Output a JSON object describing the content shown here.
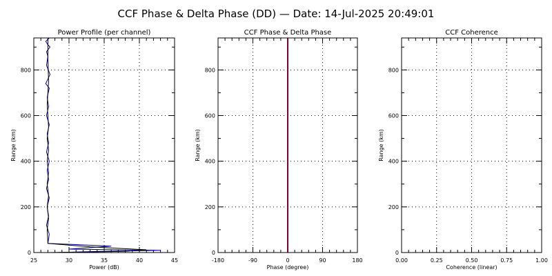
{
  "title": "CCF Phase & Delta Phase (DD) — Date: 14-Jul-2025 20:49:01",
  "colors": {
    "series_blue": "#00008b",
    "series_black": "#000000",
    "phase_line": "#800030"
  },
  "chart_data": [
    {
      "type": "line",
      "title": "Power Profile (per channel)",
      "xlabel": "Power (dB)",
      "ylabel": "Range (km)",
      "xlim": [
        25,
        45
      ],
      "ylim": [
        0,
        940
      ],
      "xticks": [
        25,
        30,
        35,
        40,
        45
      ],
      "yticks": [
        0,
        200,
        400,
        600,
        800
      ],
      "grid": true,
      "series": [
        {
          "color": "#00008b",
          "x": [
            28.3,
            34.5,
            43.0,
            30.0,
            36.0,
            27.0,
            27.2,
            26.8,
            27.1,
            26.9,
            27.2,
            26.8,
            27.1,
            26.9,
            27.2,
            26.8,
            27.1,
            26.9,
            27.2,
            26.8,
            27.1,
            26.9,
            27.2,
            26.7,
            27.3,
            26.8,
            27.0,
            26.8,
            27.3,
            27.0,
            26.7,
            27.2
          ],
          "y": [
            0,
            5,
            10,
            15,
            28,
            40,
            80,
            120,
            160,
            200,
            240,
            280,
            320,
            360,
            400,
            440,
            480,
            520,
            560,
            600,
            640,
            680,
            720,
            740,
            780,
            820,
            860,
            880,
            900,
            910,
            925,
            940
          ]
        },
        {
          "color": "#000000",
          "x": [
            27.0,
            38.0,
            41.0,
            33.0,
            27.0,
            26.9,
            27.1,
            26.9,
            27.1,
            26.9,
            27.1,
            26.9,
            27.1,
            26.9,
            27.1,
            26.9,
            27.1,
            27.0,
            27.0
          ],
          "y": [
            0,
            5,
            12,
            25,
            40,
            100,
            150,
            200,
            250,
            300,
            350,
            400,
            450,
            500,
            550,
            650,
            750,
            850,
            940
          ]
        }
      ]
    },
    {
      "type": "line",
      "title": "CCF Phase & Delta Phase",
      "xlabel": "Phase (degree)",
      "ylabel": "Range (km)",
      "xlim": [
        -180,
        180
      ],
      "ylim": [
        0,
        940
      ],
      "xticks": [
        -180,
        -90,
        0,
        90,
        180
      ],
      "yticks": [
        0,
        200,
        400,
        600,
        800
      ],
      "grid": true,
      "series": [
        {
          "color": "#800030",
          "x": [
            0,
            0
          ],
          "y": [
            0,
            940
          ]
        }
      ]
    },
    {
      "type": "line",
      "title": "CCF Coherence",
      "xlabel": "Coherence (linear)",
      "ylabel": "Range (km)",
      "xlim": [
        0,
        1
      ],
      "ylim": [
        0,
        940
      ],
      "xticks": [
        0.0,
        0.25,
        0.5,
        0.75,
        1.0
      ],
      "xtick_labels": [
        "0.00",
        "0.25",
        "0.50",
        "0.75",
        "1.00"
      ],
      "yticks": [
        0,
        200,
        400,
        600,
        800
      ],
      "grid": true,
      "series": []
    }
  ]
}
